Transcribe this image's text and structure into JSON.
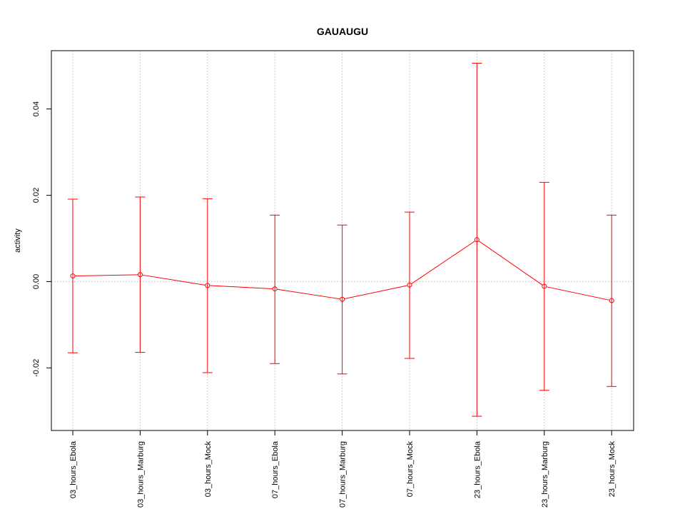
{
  "chart_data": {
    "type": "line",
    "title": "GAUAUGU",
    "xlabel": "",
    "ylabel": "activity",
    "categories": [
      "03_hours_Ebola",
      "03_hours_Marburg",
      "03_hours_Mock",
      "07_hours_Ebola",
      "07_hours_Marburg",
      "07_hours_Mock",
      "23_hours_Ebola",
      "23_hours_Marburg",
      "23_hours_Mock"
    ],
    "series": [
      {
        "values": [
          0.0013,
          0.0016,
          -0.0009,
          -0.0017,
          -0.0041,
          -0.0008,
          0.0097,
          -0.0011,
          -0.0044
        ],
        "upper": [
          0.0191,
          0.0196,
          0.0192,
          0.0154,
          0.0131,
          0.0161,
          0.0506,
          0.023,
          0.0154
        ],
        "lower": [
          -0.0165,
          -0.0164,
          -0.0211,
          -0.019,
          -0.0214,
          -0.0178,
          -0.0312,
          -0.0252,
          -0.0243
        ],
        "color": "#ff0000"
      }
    ],
    "ylim": [
      -0.0345,
      0.0535
    ],
    "yticks": [
      -0.02,
      0.0,
      0.02,
      0.04
    ],
    "ytick_labels": [
      "-0.02",
      "0.00",
      "0.02",
      "0.04"
    ],
    "grid": true
  }
}
